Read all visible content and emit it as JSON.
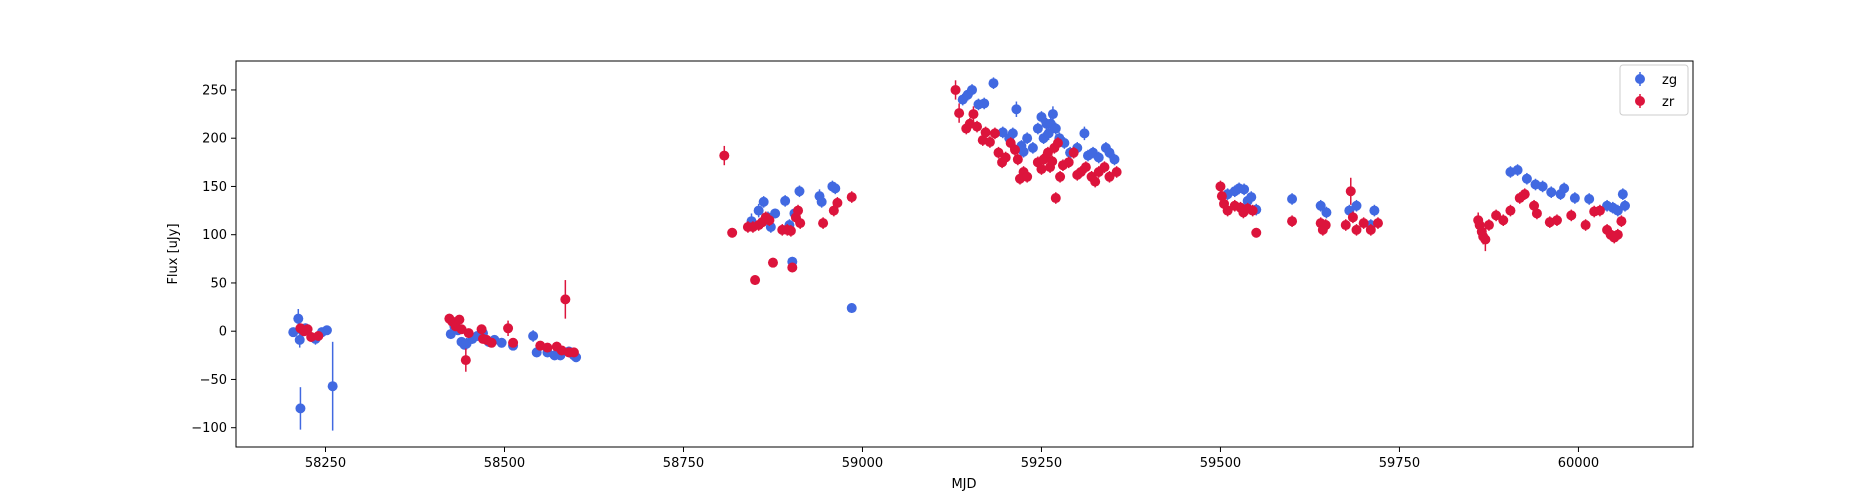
{
  "chart_data": {
    "type": "scatter",
    "xlabel": "MJD",
    "ylabel": "Flux [uJy]",
    "xlim": [
      58125,
      60160
    ],
    "ylim": [
      -120,
      280
    ],
    "x_ticks": [
      58250,
      58500,
      58750,
      59000,
      59250,
      59500,
      59750,
      60000
    ],
    "y_ticks": [
      -100,
      -50,
      0,
      50,
      100,
      150,
      200,
      250
    ],
    "grid": false,
    "legend_position": "top-right",
    "error_bars": true,
    "series": [
      {
        "name": "zg",
        "color": "#4169e1",
        "points": [
          [
            58205,
            -1,
            4
          ],
          [
            58212,
            13,
            10
          ],
          [
            58214,
            -9,
            8
          ],
          [
            58215,
            -80,
            22
          ],
          [
            58218,
            0,
            5
          ],
          [
            58222,
            3,
            4
          ],
          [
            58236,
            -8,
            6
          ],
          [
            58245,
            -1,
            4
          ],
          [
            58252,
            1,
            3
          ],
          [
            58260,
            -57,
            46
          ],
          [
            58425,
            -3,
            4
          ],
          [
            58430,
            5,
            4
          ],
          [
            58435,
            1,
            4
          ],
          [
            58440,
            -11,
            5
          ],
          [
            58444,
            -14,
            5
          ],
          [
            58447,
            -13,
            6
          ],
          [
            58455,
            -8,
            5
          ],
          [
            58462,
            -5,
            4
          ],
          [
            58470,
            -2,
            4
          ],
          [
            58478,
            -11,
            5
          ],
          [
            58486,
            -9,
            5
          ],
          [
            58496,
            -12,
            5
          ],
          [
            58512,
            -15,
            4
          ],
          [
            58540,
            -5,
            6
          ],
          [
            58545,
            -22,
            5
          ],
          [
            58560,
            -22,
            5
          ],
          [
            58570,
            -25,
            5
          ],
          [
            58578,
            -25,
            5
          ],
          [
            58590,
            -21,
            5
          ],
          [
            58597,
            -25,
            5
          ],
          [
            58600,
            -27,
            5
          ],
          [
            58845,
            114,
            8
          ],
          [
            58855,
            125,
            7
          ],
          [
            58862,
            134,
            6
          ],
          [
            58868,
            118,
            6
          ],
          [
            58872,
            108,
            6
          ],
          [
            58878,
            122,
            5
          ],
          [
            58892,
            135,
            6
          ],
          [
            58898,
            110,
            6
          ],
          [
            58902,
            72,
            5
          ],
          [
            58905,
            122,
            5
          ],
          [
            58912,
            145,
            6
          ],
          [
            58940,
            140,
            7
          ],
          [
            58943,
            134,
            6
          ],
          [
            58958,
            150,
            6
          ],
          [
            58962,
            148,
            6
          ],
          [
            58985,
            24,
            5
          ],
          [
            59140,
            240,
            6
          ],
          [
            59147,
            245,
            6
          ],
          [
            59153,
            250,
            6
          ],
          [
            59162,
            235,
            6
          ],
          [
            59170,
            236,
            6
          ],
          [
            59183,
            257,
            6
          ],
          [
            59196,
            206,
            6
          ],
          [
            59205,
            200,
            6
          ],
          [
            59210,
            205,
            6
          ],
          [
            59215,
            230,
            8
          ],
          [
            59222,
            192,
            6
          ],
          [
            59225,
            186,
            6
          ],
          [
            59230,
            200,
            6
          ],
          [
            59238,
            190,
            6
          ],
          [
            59245,
            210,
            6
          ],
          [
            59250,
            222,
            6
          ],
          [
            59253,
            200,
            6
          ],
          [
            59257,
            215,
            6
          ],
          [
            59260,
            205,
            7
          ],
          [
            59263,
            215,
            6
          ],
          [
            59266,
            225,
            8
          ],
          [
            59270,
            210,
            6
          ],
          [
            59275,
            200,
            6
          ],
          [
            59282,
            195,
            6
          ],
          [
            59290,
            185,
            6
          ],
          [
            59300,
            190,
            6
          ],
          [
            59310,
            205,
            7
          ],
          [
            59315,
            182,
            6
          ],
          [
            59322,
            185,
            6
          ],
          [
            59330,
            180,
            6
          ],
          [
            59340,
            190,
            6
          ],
          [
            59345,
            185,
            6
          ],
          [
            59352,
            178,
            6
          ],
          [
            59510,
            142,
            6
          ],
          [
            59520,
            145,
            6
          ],
          [
            59526,
            148,
            6
          ],
          [
            59533,
            147,
            6
          ],
          [
            59538,
            135,
            6
          ],
          [
            59543,
            139,
            6
          ],
          [
            59550,
            126,
            6
          ],
          [
            59600,
            137,
            6
          ],
          [
            59640,
            130,
            6
          ],
          [
            59648,
            123,
            6
          ],
          [
            59680,
            125,
            6
          ],
          [
            59690,
            130,
            6
          ],
          [
            59710,
            110,
            6
          ],
          [
            59715,
            125,
            6
          ],
          [
            59905,
            165,
            6
          ],
          [
            59915,
            167,
            6
          ],
          [
            59928,
            158,
            6
          ],
          [
            59940,
            152,
            6
          ],
          [
            59950,
            150,
            6
          ],
          [
            59962,
            144,
            6
          ],
          [
            59975,
            142,
            6
          ],
          [
            59980,
            148,
            6
          ],
          [
            59995,
            138,
            6
          ],
          [
            60015,
            137,
            6
          ],
          [
            60040,
            130,
            6
          ],
          [
            60048,
            128,
            6
          ],
          [
            60055,
            125,
            6
          ],
          [
            60062,
            142,
            6
          ],
          [
            60065,
            130,
            6
          ]
        ]
      },
      {
        "name": "zr",
        "color": "#dc143c",
        "points": [
          [
            58215,
            3,
            4
          ],
          [
            58220,
            0,
            4
          ],
          [
            58225,
            2,
            4
          ],
          [
            58230,
            -6,
            5
          ],
          [
            58240,
            -5,
            4
          ],
          [
            58423,
            13,
            5
          ],
          [
            58427,
            10,
            4
          ],
          [
            58432,
            5,
            4
          ],
          [
            58437,
            12,
            4
          ],
          [
            58440,
            2,
            4
          ],
          [
            58446,
            -30,
            12
          ],
          [
            58450,
            -2,
            4
          ],
          [
            58468,
            2,
            4
          ],
          [
            58470,
            -8,
            4
          ],
          [
            58475,
            -9,
            5
          ],
          [
            58482,
            -12,
            4
          ],
          [
            58505,
            3,
            8
          ],
          [
            58512,
            -12,
            4
          ],
          [
            58550,
            -15,
            4
          ],
          [
            58560,
            -17,
            4
          ],
          [
            58573,
            -16,
            5
          ],
          [
            58580,
            -20,
            4
          ],
          [
            58585,
            33,
            20
          ],
          [
            58590,
            -22,
            5
          ],
          [
            58597,
            -22,
            5
          ],
          [
            58807,
            182,
            10
          ],
          [
            58818,
            102,
            5
          ],
          [
            58840,
            108,
            6
          ],
          [
            58847,
            108,
            6
          ],
          [
            58850,
            53,
            5
          ],
          [
            58855,
            110,
            6
          ],
          [
            58860,
            113,
            6
          ],
          [
            58865,
            118,
            6
          ],
          [
            58870,
            115,
            6
          ],
          [
            58875,
            71,
            5
          ],
          [
            58888,
            105,
            6
          ],
          [
            58895,
            105,
            6
          ],
          [
            58900,
            104,
            6
          ],
          [
            58902,
            66,
            5
          ],
          [
            58907,
            118,
            6
          ],
          [
            58910,
            125,
            6
          ],
          [
            58913,
            112,
            6
          ],
          [
            58945,
            112,
            6
          ],
          [
            58960,
            125,
            6
          ],
          [
            58965,
            133,
            6
          ],
          [
            58985,
            139,
            6
          ],
          [
            59130,
            250,
            10
          ],
          [
            59135,
            226,
            10
          ],
          [
            59145,
            210,
            6
          ],
          [
            59150,
            215,
            6
          ],
          [
            59155,
            225,
            8
          ],
          [
            59160,
            212,
            6
          ],
          [
            59168,
            198,
            6
          ],
          [
            59172,
            206,
            6
          ],
          [
            59178,
            196,
            6
          ],
          [
            59185,
            205,
            6
          ],
          [
            59190,
            185,
            6
          ],
          [
            59195,
            175,
            6
          ],
          [
            59200,
            180,
            6
          ],
          [
            59207,
            195,
            6
          ],
          [
            59213,
            188,
            6
          ],
          [
            59217,
            178,
            6
          ],
          [
            59220,
            158,
            6
          ],
          [
            59225,
            165,
            6
          ],
          [
            59230,
            160,
            6
          ],
          [
            59245,
            175,
            6
          ],
          [
            59250,
            168,
            6
          ],
          [
            59253,
            178,
            6
          ],
          [
            59256,
            180,
            6
          ],
          [
            59259,
            185,
            6
          ],
          [
            59262,
            170,
            6
          ],
          [
            59265,
            176,
            6
          ],
          [
            59268,
            190,
            6
          ],
          [
            59270,
            138,
            6
          ],
          [
            59273,
            195,
            6
          ],
          [
            59276,
            160,
            6
          ],
          [
            59280,
            172,
            6
          ],
          [
            59288,
            175,
            6
          ],
          [
            59295,
            185,
            6
          ],
          [
            59300,
            162,
            6
          ],
          [
            59305,
            165,
            6
          ],
          [
            59312,
            170,
            6
          ],
          [
            59320,
            160,
            6
          ],
          [
            59325,
            155,
            6
          ],
          [
            59330,
            165,
            6
          ],
          [
            59338,
            170,
            6
          ],
          [
            59345,
            160,
            6
          ],
          [
            59355,
            165,
            6
          ],
          [
            59500,
            150,
            6
          ],
          [
            59502,
            140,
            6
          ],
          [
            59505,
            132,
            6
          ],
          [
            59510,
            125,
            6
          ],
          [
            59520,
            130,
            6
          ],
          [
            59528,
            128,
            6
          ],
          [
            59532,
            123,
            6
          ],
          [
            59538,
            127,
            6
          ],
          [
            59545,
            125,
            6
          ],
          [
            59550,
            102,
            5
          ],
          [
            59600,
            114,
            6
          ],
          [
            59640,
            112,
            6
          ],
          [
            59643,
            105,
            6
          ],
          [
            59647,
            110,
            6
          ],
          [
            59675,
            110,
            6
          ],
          [
            59682,
            145,
            14
          ],
          [
            59685,
            118,
            6
          ],
          [
            59690,
            105,
            6
          ],
          [
            59700,
            112,
            6
          ],
          [
            59710,
            105,
            6
          ],
          [
            59720,
            112,
            6
          ],
          [
            59860,
            115,
            8
          ],
          [
            59862,
            110,
            8
          ],
          [
            59865,
            103,
            8
          ],
          [
            59867,
            98,
            8
          ],
          [
            59870,
            95,
            12
          ],
          [
            59875,
            110,
            6
          ],
          [
            59885,
            120,
            6
          ],
          [
            59895,
            115,
            6
          ],
          [
            59905,
            125,
            6
          ],
          [
            59918,
            138,
            6
          ],
          [
            59925,
            142,
            6
          ],
          [
            59938,
            130,
            6
          ],
          [
            59942,
            122,
            6
          ],
          [
            59960,
            113,
            6
          ],
          [
            59970,
            115,
            6
          ],
          [
            59990,
            120,
            6
          ],
          [
            60010,
            110,
            6
          ],
          [
            60022,
            124,
            6
          ],
          [
            60030,
            125,
            6
          ],
          [
            60040,
            105,
            6
          ],
          [
            60045,
            100,
            6
          ],
          [
            60050,
            97,
            6
          ],
          [
            60055,
            100,
            6
          ],
          [
            60060,
            114,
            6
          ]
        ]
      }
    ]
  }
}
